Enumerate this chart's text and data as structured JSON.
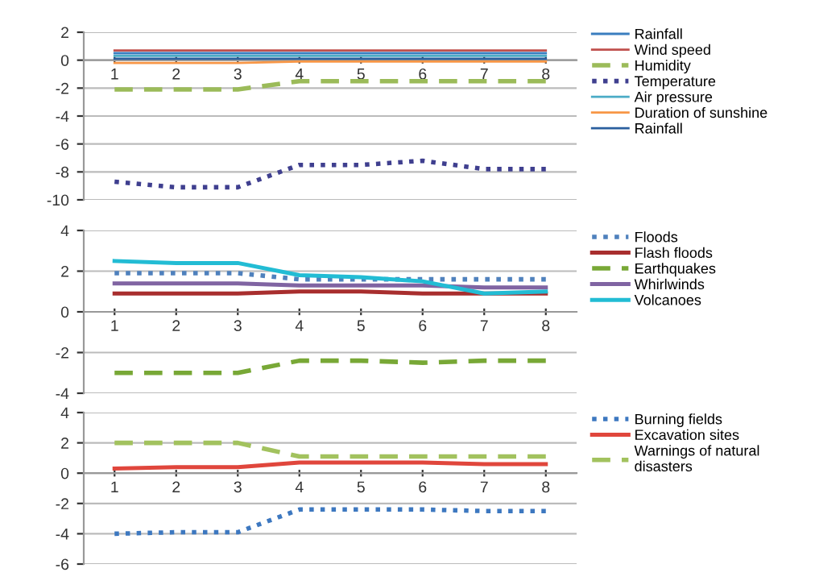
{
  "chart_data": [
    {
      "type": "line",
      "categories": [
        "1",
        "2",
        "3",
        "4",
        "5",
        "6",
        "7",
        "8"
      ],
      "ylim": [
        -10,
        2
      ],
      "yticks": [
        -10,
        -8,
        -6,
        -4,
        -2,
        0,
        2
      ],
      "grid": "y",
      "legend": "right",
      "marker": "none",
      "series": [
        {
          "name": "Rainfall",
          "color": "#3a7ebf",
          "line_style": "solid",
          "values": [
            0.5,
            0.5,
            0.5,
            0.5,
            0.5,
            0.5,
            0.5,
            0.5
          ]
        },
        {
          "name": "Wind speed",
          "color": "#c0504d",
          "line_style": "solid",
          "values": [
            0.7,
            0.7,
            0.7,
            0.7,
            0.7,
            0.7,
            0.7,
            0.7
          ]
        },
        {
          "name": "Humidity",
          "color": "#9bbb59",
          "line_style": "dashed",
          "values": [
            -2.1,
            -2.1,
            -2.1,
            -1.5,
            -1.5,
            -1.5,
            -1.5,
            -1.5
          ]
        },
        {
          "name": "Temperature",
          "color": "#3f3f8f",
          "line_style": "dotted",
          "values": [
            -8.7,
            -9.1,
            -9.1,
            -7.5,
            -7.5,
            -7.2,
            -7.8,
            -7.8
          ]
        },
        {
          "name": "Air pressure",
          "color": "#4bacc6",
          "line_style": "solid",
          "values": [
            0.3,
            0.3,
            0.3,
            0.3,
            0.3,
            0.3,
            0.3,
            0.3
          ]
        },
        {
          "name": "Duration of sunshine",
          "color": "#f79646",
          "line_style": "solid",
          "values": [
            -0.2,
            -0.2,
            -0.2,
            -0.1,
            -0.1,
            -0.1,
            -0.1,
            -0.1
          ]
        },
        {
          "name": "Rainfall",
          "color": "#2a5f9e",
          "line_style": "solid",
          "values": [
            0.1,
            0.1,
            0.1,
            0.1,
            0.1,
            0.1,
            0.1,
            0.1
          ]
        }
      ]
    },
    {
      "type": "line",
      "categories": [
        "1",
        "2",
        "3",
        "4",
        "5",
        "6",
        "7",
        "8"
      ],
      "ylim": [
        -4,
        4
      ],
      "yticks": [
        -4,
        -2,
        0,
        2,
        4
      ],
      "grid": "y",
      "legend": "right",
      "marker": "none",
      "series": [
        {
          "name": "Floods",
          "color": "#4f81bd",
          "line_style": "dotted",
          "values": [
            1.9,
            1.9,
            1.9,
            1.6,
            1.6,
            1.6,
            1.6,
            1.6
          ]
        },
        {
          "name": "Flash floods",
          "color": "#a82e2e",
          "line_style": "solid",
          "values": [
            0.9,
            0.9,
            0.9,
            1.0,
            1.0,
            0.9,
            0.9,
            0.9
          ]
        },
        {
          "name": "Earthquakes",
          "color": "#78a836",
          "line_style": "dashed",
          "values": [
            -3.0,
            -3.0,
            -3.0,
            -2.4,
            -2.4,
            -2.5,
            -2.4,
            -2.4
          ]
        },
        {
          "name": "Whirlwinds",
          "color": "#8064a2",
          "line_style": "solid",
          "values": [
            1.4,
            1.4,
            1.4,
            1.3,
            1.3,
            1.3,
            1.2,
            1.2
          ]
        },
        {
          "name": "Volcanoes",
          "color": "#22bcd4",
          "line_style": "solid",
          "values": [
            2.5,
            2.4,
            2.4,
            1.8,
            1.7,
            1.5,
            0.9,
            1.0
          ]
        }
      ]
    },
    {
      "type": "line",
      "categories": [
        "1",
        "2",
        "3",
        "4",
        "5",
        "6",
        "7",
        "8"
      ],
      "ylim": [
        -6,
        4
      ],
      "yticks": [
        -6,
        -4,
        -2,
        0,
        2,
        4
      ],
      "grid": "y",
      "legend": "right",
      "marker": "none",
      "series": [
        {
          "name": "Burning fields",
          "color": "#3d78c0",
          "line_style": "dotted",
          "values": [
            -4.0,
            -3.9,
            -3.9,
            -2.4,
            -2.4,
            -2.4,
            -2.5,
            -2.5
          ]
        },
        {
          "name": "Excavation sites",
          "color": "#e0463c",
          "line_style": "solid",
          "values": [
            0.3,
            0.4,
            0.4,
            0.7,
            0.7,
            0.7,
            0.6,
            0.6
          ]
        },
        {
          "name": "Warnings of natural disasters",
          "color": "#a2c25e",
          "line_style": "dashed",
          "values": [
            2.0,
            2.0,
            2.0,
            1.1,
            1.1,
            1.1,
            1.1,
            1.1
          ]
        }
      ]
    }
  ]
}
